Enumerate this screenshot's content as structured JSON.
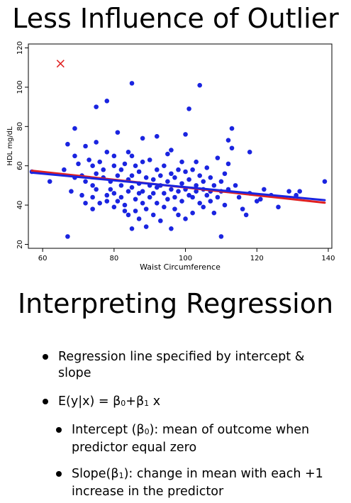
{
  "slide": {
    "title_top": "Less Influence of Outlier",
    "title_bottom": "Interpreting Regression",
    "bullets": [
      {
        "text": "Regression line specified by intercept & slope"
      },
      {
        "prefix": "E(y|x) = β",
        "sub1": "0",
        "mid": "+β",
        "sub2": "1",
        "suffix": " x"
      },
      {
        "prefix": "Intercept (β",
        "sub1": "0",
        "suffix": "): mean of outcome when predictor equal zero"
      },
      {
        "prefix": "Slope(β",
        "sub1": "1",
        "suffix": "): change in mean with each +1 increase in the predictor"
      }
    ]
  },
  "chart_data": {
    "type": "scatter",
    "title": "",
    "xlabel": "Waist Circumference",
    "ylabel": "HDL mg/dL",
    "xlim": [
      56,
      141
    ],
    "ylim": [
      18,
      122
    ],
    "xticks": [
      60,
      80,
      100,
      120,
      140
    ],
    "yticks": [
      20,
      40,
      60,
      80,
      100,
      120
    ],
    "grid": false,
    "legend": "none",
    "colors": {
      "points": "#1a24e0",
      "outlier": "#e02020",
      "fit_without": "#1a24e0",
      "fit_with": "#e02020"
    },
    "outlier": {
      "x": 65,
      "y": 112
    },
    "lines": [
      {
        "color": "#e02020",
        "x": [
          57,
          139
        ],
        "y": [
          57.5,
          41.2
        ]
      },
      {
        "color": "#1a24e0",
        "x": [
          57,
          139
        ],
        "y": [
          56.5,
          42.5
        ]
      }
    ],
    "points": [
      [
        57,
        57
      ],
      [
        62,
        52
      ],
      [
        66,
        58
      ],
      [
        67,
        71
      ],
      [
        67,
        24
      ],
      [
        68,
        47
      ],
      [
        69,
        79
      ],
      [
        69,
        65
      ],
      [
        69,
        54
      ],
      [
        70,
        61
      ],
      [
        71,
        45
      ],
      [
        71,
        55
      ],
      [
        72,
        70
      ],
      [
        72,
        52
      ],
      [
        72,
        41
      ],
      [
        73,
        63
      ],
      [
        74,
        60
      ],
      [
        74,
        50
      ],
      [
        74,
        44
      ],
      [
        74,
        38
      ],
      [
        75,
        90
      ],
      [
        75,
        72
      ],
      [
        75,
        56
      ],
      [
        75,
        48
      ],
      [
        76,
        62
      ],
      [
        76,
        41
      ],
      [
        77,
        58
      ],
      [
        77,
        54
      ],
      [
        78,
        93
      ],
      [
        78,
        45
      ],
      [
        78,
        67
      ],
      [
        78,
        42
      ],
      [
        79,
        48
      ],
      [
        79,
        52
      ],
      [
        80,
        60
      ],
      [
        80,
        46
      ],
      [
        80,
        39
      ],
      [
        80,
        65
      ],
      [
        81,
        55
      ],
      [
        81,
        42
      ],
      [
        81,
        77
      ],
      [
        82,
        58
      ],
      [
        82,
        50
      ],
      [
        82,
        44
      ],
      [
        83,
        61
      ],
      [
        83,
        37
      ],
      [
        83,
        40
      ],
      [
        84,
        53
      ],
      [
        84,
        47
      ],
      [
        84,
        35
      ],
      [
        84,
        67
      ],
      [
        85,
        102
      ],
      [
        85,
        28
      ],
      [
        85,
        65
      ],
      [
        85,
        55
      ],
      [
        85,
        49
      ],
      [
        86,
        43
      ],
      [
        86,
        37
      ],
      [
        86,
        60
      ],
      [
        87,
        57
      ],
      [
        87,
        51
      ],
      [
        87,
        46
      ],
      [
        87,
        33
      ],
      [
        88,
        74
      ],
      [
        88,
        62
      ],
      [
        88,
        47
      ],
      [
        88,
        41
      ],
      [
        89,
        54
      ],
      [
        89,
        38
      ],
      [
        89,
        29
      ],
      [
        90,
        50
      ],
      [
        90,
        44
      ],
      [
        90,
        63
      ],
      [
        91,
        53
      ],
      [
        91,
        46
      ],
      [
        91,
        35
      ],
      [
        92,
        75
      ],
      [
        92,
        58
      ],
      [
        92,
        41
      ],
      [
        92,
        49
      ],
      [
        93,
        55
      ],
      [
        93,
        50
      ],
      [
        93,
        32
      ],
      [
        94,
        46
      ],
      [
        94,
        39
      ],
      [
        94,
        60
      ],
      [
        95,
        66
      ],
      [
        95,
        52
      ],
      [
        95,
        43
      ],
      [
        96,
        56
      ],
      [
        96,
        48
      ],
      [
        96,
        28
      ],
      [
        96,
        68
      ],
      [
        97,
        54
      ],
      [
        97,
        44
      ],
      [
        97,
        38
      ],
      [
        98,
        58
      ],
      [
        98,
        47
      ],
      [
        98,
        35
      ],
      [
        99,
        62
      ],
      [
        99,
        51
      ],
      [
        99,
        42
      ],
      [
        100,
        57
      ],
      [
        100,
        48
      ],
      [
        100,
        76
      ],
      [
        100,
        33
      ],
      [
        101,
        89
      ],
      [
        101,
        53
      ],
      [
        101,
        45
      ],
      [
        102,
        58
      ],
      [
        102,
        44
      ],
      [
        102,
        36
      ],
      [
        103,
        50
      ],
      [
        103,
        47
      ],
      [
        103,
        62
      ],
      [
        104,
        101
      ],
      [
        104,
        55
      ],
      [
        104,
        41
      ],
      [
        105,
        48
      ],
      [
        105,
        39
      ],
      [
        105,
        52
      ],
      [
        106,
        45
      ],
      [
        106,
        59
      ],
      [
        107,
        54
      ],
      [
        107,
        42
      ],
      [
        107,
        47
      ],
      [
        108,
        50
      ],
      [
        108,
        36
      ],
      [
        109,
        64
      ],
      [
        109,
        44
      ],
      [
        110,
        52
      ],
      [
        110,
        24
      ],
      [
        110,
        47
      ],
      [
        111,
        56
      ],
      [
        111,
        40
      ],
      [
        112,
        73
      ],
      [
        112,
        61
      ],
      [
        112,
        48
      ],
      [
        113,
        79
      ],
      [
        113,
        69
      ],
      [
        114,
        50
      ],
      [
        115,
        44
      ],
      [
        116,
        38
      ],
      [
        117,
        35
      ],
      [
        118,
        46
      ],
      [
        118,
        67
      ],
      [
        120,
        42
      ],
      [
        121,
        43
      ],
      [
        122,
        48
      ],
      [
        124,
        45
      ],
      [
        126,
        39
      ],
      [
        129,
        47
      ],
      [
        131,
        45
      ],
      [
        132,
        47
      ],
      [
        139,
        52
      ]
    ]
  }
}
